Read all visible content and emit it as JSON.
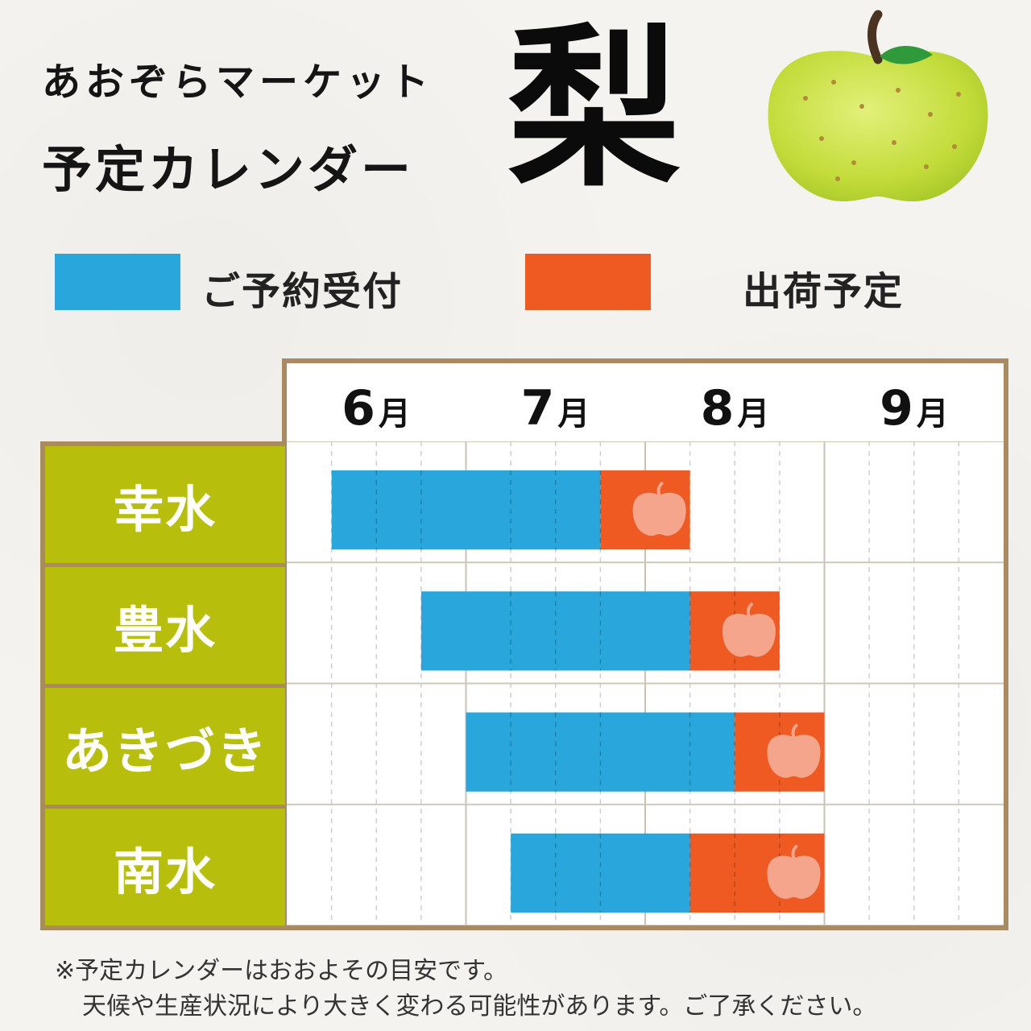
{
  "header": {
    "line1": "あおぞらマーケット",
    "line2": "予定カレンダー",
    "fruit": "梨"
  },
  "illustration": {
    "icon": "green-pear-icon"
  },
  "legend": [
    {
      "label": "ご予約受付",
      "color": "#29a7dd"
    },
    {
      "label": "出荷予定",
      "color": "#ee5a22"
    }
  ],
  "colors": {
    "reservation": "#29a7dd",
    "shipping": "#ee5a22",
    "row_label_bg": "#b7bf0c",
    "frame": "#a98a62",
    "pear_icon": "#f4a58c"
  },
  "chart_data": {
    "type": "gantt",
    "period_unit": "quarter-month",
    "months": [
      {
        "num": "6",
        "unit": "月"
      },
      {
        "num": "7",
        "unit": "月"
      },
      {
        "num": "8",
        "unit": "月"
      },
      {
        "num": "9",
        "unit": "月"
      }
    ],
    "x_range": [
      0,
      16
    ],
    "grid": true,
    "rows": [
      {
        "name": "幸水",
        "reservation": [
          1,
          7
        ],
        "shipping": [
          7,
          9
        ]
      },
      {
        "name": "豊水",
        "reservation": [
          3,
          9
        ],
        "shipping": [
          9,
          11
        ]
      },
      {
        "name": "あきづき",
        "reservation": [
          4,
          10
        ],
        "shipping": [
          10,
          12
        ]
      },
      {
        "name": "南水",
        "reservation": [
          5,
          9
        ],
        "shipping": [
          9,
          12
        ]
      }
    ]
  },
  "footnote": {
    "line1": "※予定カレンダーはおおよその目安です。",
    "line2": "天候や生産状況により大きく変わる可能性があります。ご了承ください。"
  }
}
